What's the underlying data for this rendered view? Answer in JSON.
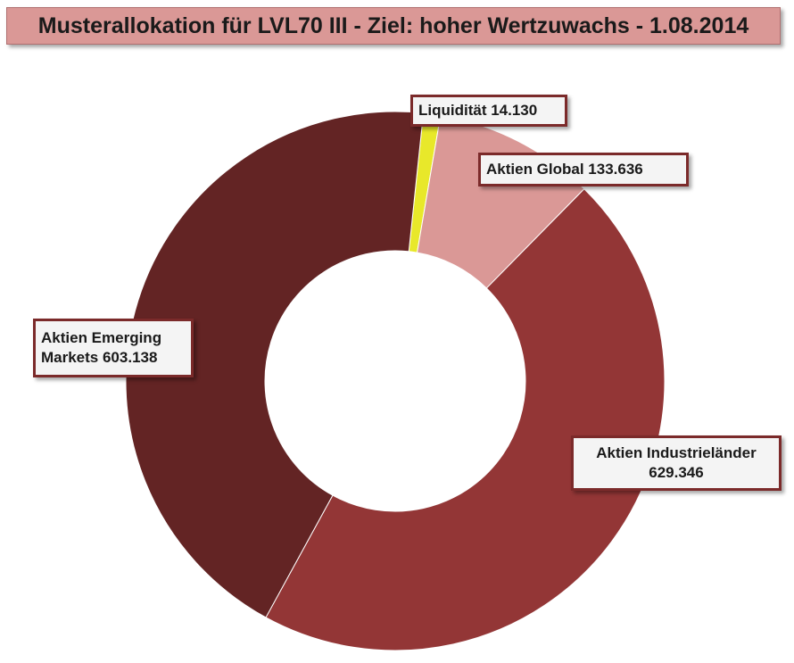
{
  "title": "Musterallokation für LVL70 III - Ziel: hoher Wertzuwachs - 1.08.2014",
  "chart_data": {
    "type": "pie",
    "subtype": "donut",
    "slices": [
      {
        "label_lines": [
          "Liquidität 14.130"
        ],
        "value": 14130,
        "color": "#e8e82a"
      },
      {
        "label_lines": [
          "Aktien Global 133.636"
        ],
        "value": 133636,
        "color": "#da9896"
      },
      {
        "label_lines": [
          "Aktien Industrieländer",
          "629.346"
        ],
        "value": 629346,
        "color": "#933636"
      },
      {
        "label_lines": [
          "Aktien Emerging",
          "Markets 603.138"
        ],
        "value": 603138,
        "color": "#632424"
      }
    ]
  }
}
